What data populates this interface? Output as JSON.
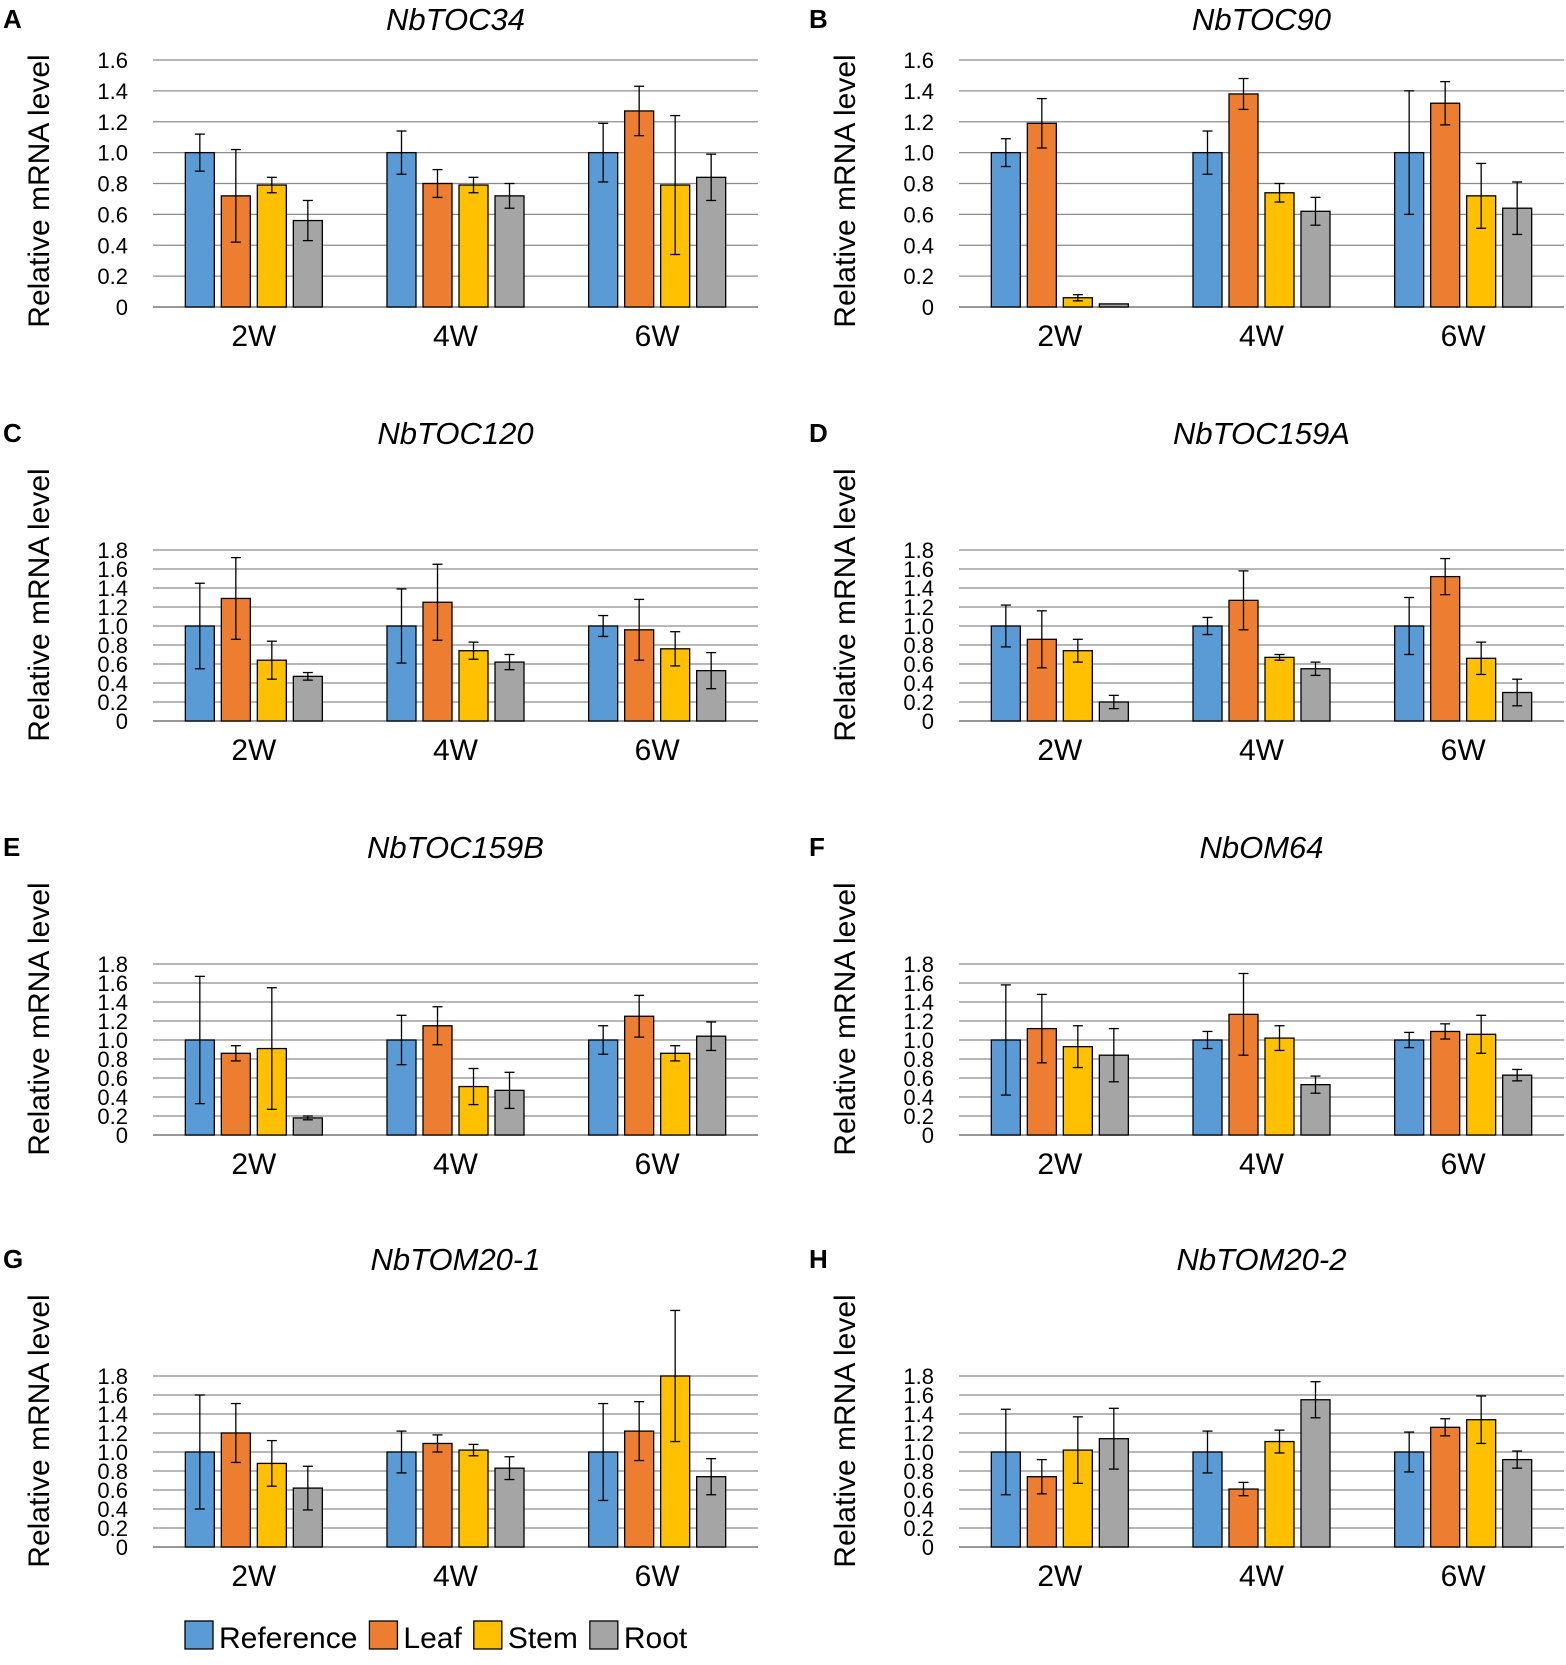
{
  "colors": {
    "Reference": "#5b9bd5",
    "Leaf": "#ed7d31",
    "Stem": "#ffc000",
    "Root": "#a5a5a5"
  },
  "legend": [
    "Reference",
    "Leaf",
    "Stem",
    "Root"
  ],
  "chart_data": [
    {
      "type": "bar",
      "panel": "A",
      "title": "NbTOC34",
      "ylabel": "Relative mRNA level",
      "xlabel": "",
      "categories": [
        "2W",
        "4W",
        "6W"
      ],
      "ylim": [
        0,
        1.6
      ],
      "yticks": [
        "0",
        "0.2",
        "0.4",
        "0.6",
        "0.8",
        "1.0",
        "1.2",
        "1.4",
        "1.6"
      ],
      "series": [
        {
          "name": "Reference",
          "values": [
            1.0,
            1.0,
            1.0
          ],
          "errors": [
            0.12,
            0.14,
            0.19
          ]
        },
        {
          "name": "Leaf",
          "values": [
            0.72,
            0.8,
            1.27
          ],
          "errors": [
            0.3,
            0.09,
            0.16
          ]
        },
        {
          "name": "Stem",
          "values": [
            0.79,
            0.79,
            0.79
          ],
          "errors": [
            0.05,
            0.05,
            0.45
          ]
        },
        {
          "name": "Root",
          "values": [
            0.56,
            0.72,
            0.84
          ],
          "errors": [
            0.13,
            0.08,
            0.15
          ]
        }
      ]
    },
    {
      "type": "bar",
      "panel": "B",
      "title": "NbTOC90",
      "ylabel": "Relative mRNA level",
      "xlabel": "",
      "categories": [
        "2W",
        "4W",
        "6W"
      ],
      "ylim": [
        0,
        1.6
      ],
      "yticks": [
        "0",
        "0.2",
        "0.4",
        "0.6",
        "0.8",
        "1.0",
        "1.2",
        "1.4",
        "1.6"
      ],
      "series": [
        {
          "name": "Reference",
          "values": [
            1.0,
            1.0,
            1.0
          ],
          "errors": [
            0.09,
            0.14,
            0.4
          ]
        },
        {
          "name": "Leaf",
          "values": [
            1.19,
            1.38,
            1.32
          ],
          "errors": [
            0.16,
            0.1,
            0.14
          ]
        },
        {
          "name": "Stem",
          "values": [
            0.06,
            0.74,
            0.72
          ],
          "errors": [
            0.02,
            0.06,
            0.21
          ]
        },
        {
          "name": "Root",
          "values": [
            0.02,
            0.62,
            0.64
          ],
          "errors": [
            0.0,
            0.09,
            0.17
          ]
        }
      ]
    },
    {
      "type": "bar",
      "panel": "C",
      "title": "NbTOC120",
      "ylabel": "Relative mRNA level",
      "xlabel": "",
      "categories": [
        "2W",
        "4W",
        "6W"
      ],
      "ylim": [
        0,
        1.8
      ],
      "yticks": [
        "0",
        "0.2",
        "0.4",
        "0.6",
        "0.8",
        "1.0",
        "1.2",
        "1.4",
        "1.6",
        "1.8"
      ],
      "series": [
        {
          "name": "Reference",
          "values": [
            1.0,
            1.0,
            1.0
          ],
          "errors": [
            0.45,
            0.39,
            0.11
          ]
        },
        {
          "name": "Leaf",
          "values": [
            1.29,
            1.25,
            0.96
          ],
          "errors": [
            0.43,
            0.4,
            0.32
          ]
        },
        {
          "name": "Stem",
          "values": [
            0.64,
            0.74,
            0.76
          ],
          "errors": [
            0.2,
            0.09,
            0.18
          ]
        },
        {
          "name": "Root",
          "values": [
            0.47,
            0.62,
            0.53
          ],
          "errors": [
            0.04,
            0.08,
            0.19
          ]
        }
      ]
    },
    {
      "type": "bar",
      "panel": "D",
      "title": "NbTOC159A",
      "ylabel": "Relative mRNA level",
      "xlabel": "",
      "categories": [
        "2W",
        "4W",
        "6W"
      ],
      "ylim": [
        0,
        1.8
      ],
      "yticks": [
        "0",
        "0.2",
        "0.4",
        "0.6",
        "0.8",
        "1.0",
        "1.2",
        "1.4",
        "1.6",
        "1.8"
      ],
      "series": [
        {
          "name": "Reference",
          "values": [
            1.0,
            1.0,
            1.0
          ],
          "errors": [
            0.22,
            0.09,
            0.3
          ]
        },
        {
          "name": "Leaf",
          "values": [
            0.86,
            1.27,
            1.52
          ],
          "errors": [
            0.3,
            0.31,
            0.19
          ]
        },
        {
          "name": "Stem",
          "values": [
            0.74,
            0.67,
            0.66
          ],
          "errors": [
            0.12,
            0.03,
            0.17
          ]
        },
        {
          "name": "Root",
          "values": [
            0.2,
            0.55,
            0.3
          ],
          "errors": [
            0.07,
            0.07,
            0.14
          ]
        }
      ]
    },
    {
      "type": "bar",
      "panel": "E",
      "title": "NbTOC159B",
      "ylabel": "Relative mRNA level",
      "xlabel": "",
      "categories": [
        "2W",
        "4W",
        "6W"
      ],
      "ylim": [
        0,
        1.8
      ],
      "yticks": [
        "0",
        "0.2",
        "0.4",
        "0.6",
        "0.8",
        "1.0",
        "1.2",
        "1.4",
        "1.6",
        "1.8"
      ],
      "series": [
        {
          "name": "Reference",
          "values": [
            1.0,
            1.0,
            1.0
          ],
          "errors": [
            0.67,
            0.26,
            0.15
          ]
        },
        {
          "name": "Leaf",
          "values": [
            0.86,
            1.15,
            1.25
          ],
          "errors": [
            0.08,
            0.2,
            0.22
          ]
        },
        {
          "name": "Stem",
          "values": [
            0.91,
            0.51,
            0.86
          ],
          "errors": [
            0.64,
            0.19,
            0.08
          ]
        },
        {
          "name": "Root",
          "values": [
            0.18,
            0.47,
            1.04
          ],
          "errors": [
            0.02,
            0.19,
            0.15
          ]
        }
      ]
    },
    {
      "type": "bar",
      "panel": "F",
      "title": "NbOM64",
      "ylabel": "Relative mRNA level",
      "xlabel": "",
      "categories": [
        "2W",
        "4W",
        "6W"
      ],
      "ylim": [
        0,
        1.8
      ],
      "yticks": [
        "0",
        "0.2",
        "0.4",
        "0.6",
        "0.8",
        "1.0",
        "1.2",
        "1.4",
        "1.6",
        "1.8"
      ],
      "series": [
        {
          "name": "Reference",
          "values": [
            1.0,
            1.0,
            1.0
          ],
          "errors": [
            0.58,
            0.09,
            0.08
          ]
        },
        {
          "name": "Leaf",
          "values": [
            1.12,
            1.27,
            1.09
          ],
          "errors": [
            0.36,
            0.43,
            0.08
          ]
        },
        {
          "name": "Stem",
          "values": [
            0.93,
            1.02,
            1.06
          ],
          "errors": [
            0.22,
            0.13,
            0.2
          ]
        },
        {
          "name": "Root",
          "values": [
            0.84,
            0.53,
            0.63
          ],
          "errors": [
            0.28,
            0.09,
            0.06
          ]
        }
      ]
    },
    {
      "type": "bar",
      "panel": "G",
      "title": "NbTOM20-1",
      "ylabel": "Relative mRNA level",
      "xlabel": "",
      "categories": [
        "2W",
        "4W",
        "6W"
      ],
      "ylim": [
        0,
        1.8
      ],
      "yticks": [
        "0",
        "0.2",
        "0.4",
        "0.6",
        "0.8",
        "1.0",
        "1.2",
        "1.4",
        "1.6",
        "1.8"
      ],
      "series": [
        {
          "name": "Reference",
          "values": [
            1.0,
            1.0,
            1.0
          ],
          "errors": [
            0.6,
            0.22,
            0.51
          ]
        },
        {
          "name": "Leaf",
          "values": [
            1.2,
            1.09,
            1.22
          ],
          "errors": [
            0.31,
            0.09,
            0.31
          ]
        },
        {
          "name": "Stem",
          "values": [
            0.88,
            1.02,
            1.8
          ],
          "errors": [
            0.24,
            0.06,
            0.69
          ]
        },
        {
          "name": "Root",
          "values": [
            0.62,
            0.83,
            0.74
          ],
          "errors": [
            0.23,
            0.12,
            0.19
          ]
        }
      ]
    },
    {
      "type": "bar",
      "panel": "H",
      "title": "NbTOM20-2",
      "ylabel": "Relative mRNA level",
      "xlabel": "",
      "categories": [
        "2W",
        "4W",
        "6W"
      ],
      "ylim": [
        0,
        1.8
      ],
      "yticks": [
        "0",
        "0.2",
        "0.4",
        "0.6",
        "0.8",
        "1.0",
        "1.2",
        "1.4",
        "1.6",
        "1.8"
      ],
      "series": [
        {
          "name": "Reference",
          "values": [
            1.0,
            1.0,
            1.0
          ],
          "errors": [
            0.45,
            0.22,
            0.21
          ]
        },
        {
          "name": "Leaf",
          "values": [
            0.74,
            0.61,
            1.26
          ],
          "errors": [
            0.18,
            0.07,
            0.09
          ]
        },
        {
          "name": "Stem",
          "values": [
            1.02,
            1.11,
            1.34
          ],
          "errors": [
            0.35,
            0.12,
            0.25
          ]
        },
        {
          "name": "Root",
          "values": [
            1.14,
            1.55,
            0.92
          ],
          "errors": [
            0.32,
            0.19,
            0.09
          ]
        }
      ]
    }
  ]
}
